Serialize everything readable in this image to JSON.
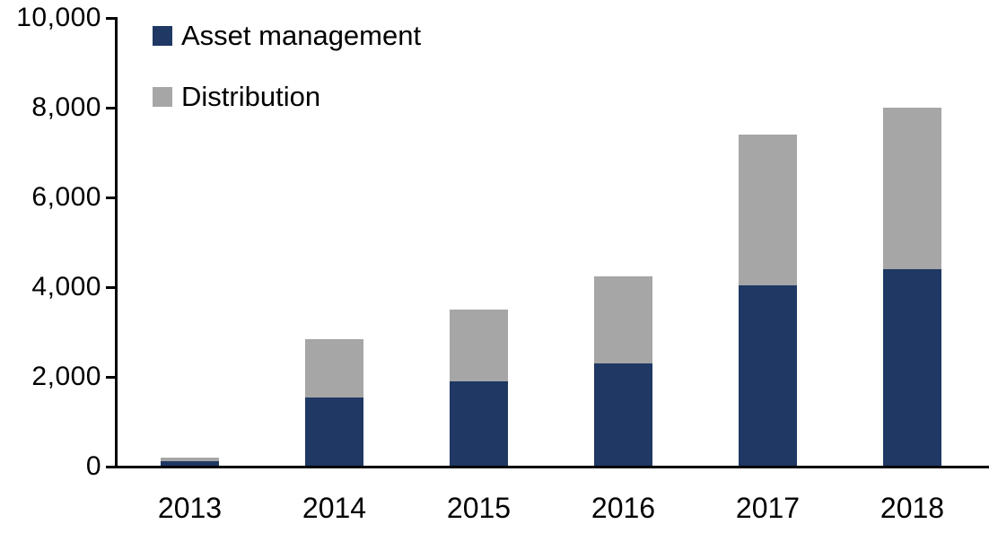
{
  "chart_data": {
    "type": "bar",
    "stacked": true,
    "title": "",
    "xlabel": "",
    "ylabel": "",
    "categories": [
      "2013",
      "2014",
      "2015",
      "2016",
      "2017",
      "2018"
    ],
    "series": [
      {
        "name": "Asset management",
        "color": "#1F3864",
        "values": [
          120,
          1550,
          1900,
          2300,
          4050,
          4400
        ]
      },
      {
        "name": "Distribution",
        "color": "#A6A6A6",
        "values": [
          80,
          1300,
          1600,
          1950,
          3350,
          3600
        ]
      }
    ],
    "totals": [
      200,
      2850,
      3500,
      4250,
      7400,
      8000
    ],
    "ylim": [
      0,
      10000
    ],
    "yticks": [
      {
        "value": 0,
        "label": "0"
      },
      {
        "value": 2000,
        "label": "2,000"
      },
      {
        "value": 4000,
        "label": "4,000"
      },
      {
        "value": 6000,
        "label": "6,000"
      },
      {
        "value": 8000,
        "label": "8,000"
      },
      {
        "value": 10000,
        "label": "10,000"
      }
    ],
    "grid": false,
    "legend_position": "top-left",
    "axis_color": "#000000",
    "text_color": "#000000",
    "background_color": "#FFFFFF"
  }
}
